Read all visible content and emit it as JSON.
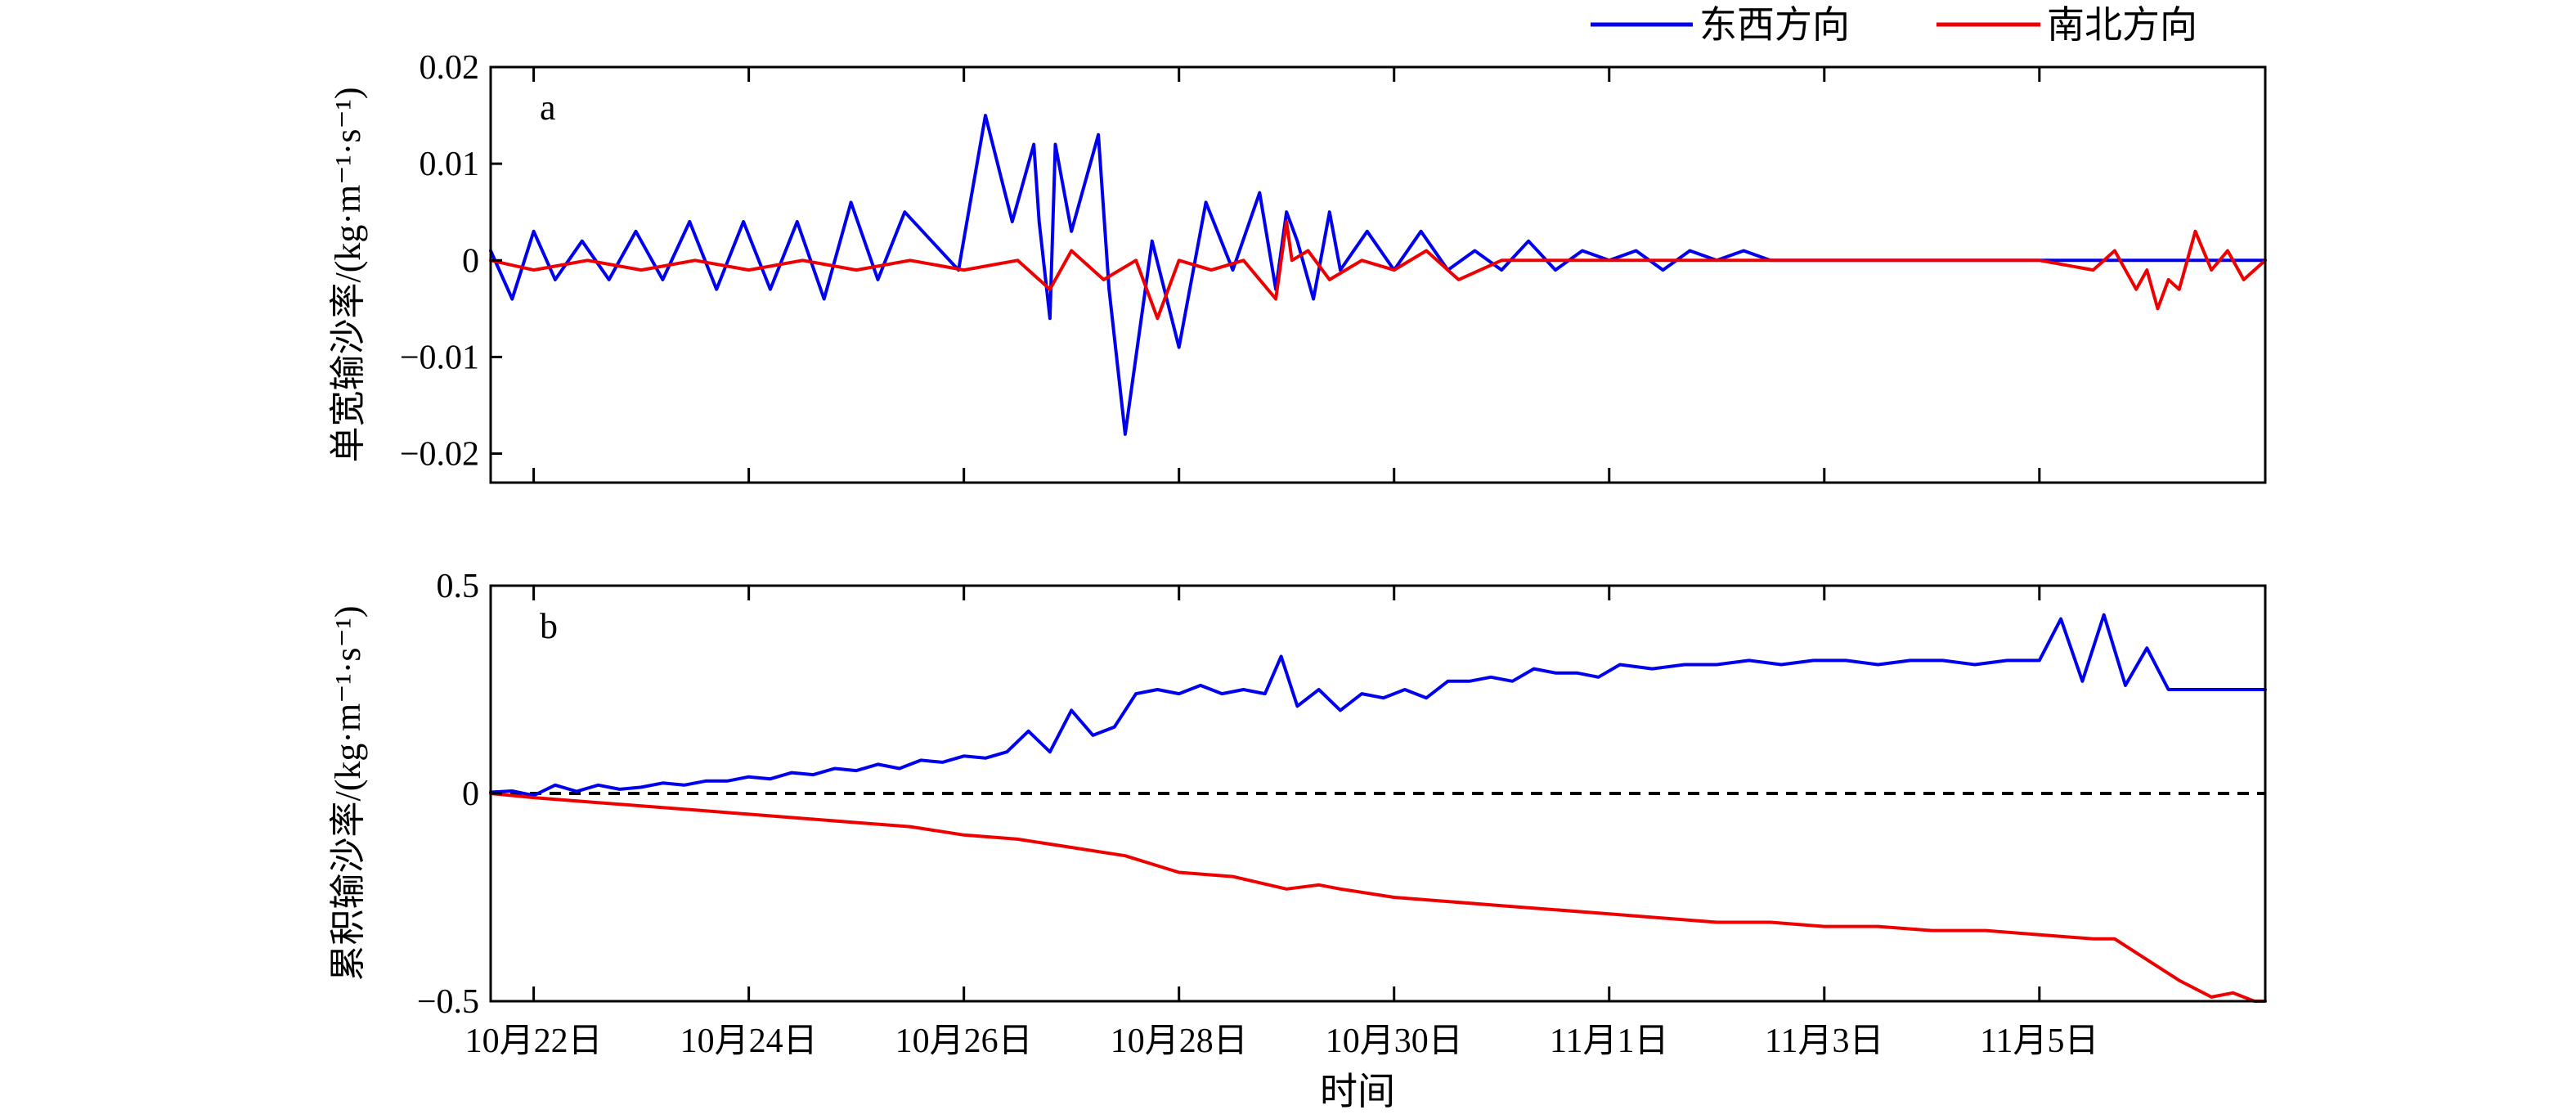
{
  "legend": [
    {
      "label": "东西方向",
      "color": "#0000ee"
    },
    {
      "label": "南北方向",
      "color": "#ee0000"
    }
  ],
  "xlabel": "时间",
  "x_ticks": [
    {
      "day": 0,
      "label": "10月22日"
    },
    {
      "day": 2,
      "label": "10月24日"
    },
    {
      "day": 4,
      "label": "10月26日"
    },
    {
      "day": 6,
      "label": "10月28日"
    },
    {
      "day": 8,
      "label": "10月30日"
    },
    {
      "day": 10,
      "label": "11月1日"
    },
    {
      "day": 12,
      "label": "11月3日"
    },
    {
      "day": 14,
      "label": "11月5日"
    }
  ],
  "chart_data": [
    {
      "type": "line",
      "panel_label": "a",
      "ylabel": "单宽输沙率/(kg·m⁻¹·s⁻¹)",
      "xlim": [
        "10月21日 15:00",
        "11月6日 23:00"
      ],
      "ylim": [
        -0.023,
        0.02
      ],
      "y_ticks": [
        {
          "value": 0.02,
          "label": "0.02"
        },
        {
          "value": 0.01,
          "label": "0.01"
        },
        {
          "value": 0,
          "label": "0"
        },
        {
          "value": -0.01,
          "label": "−0.01"
        },
        {
          "value": -0.02,
          "label": "−0.02"
        }
      ],
      "series": [
        {
          "name": "东西方向",
          "color": "#0000ee",
          "x_days": [
            -0.4,
            -0.2,
            0,
            0.2,
            0.45,
            0.7,
            0.95,
            1.2,
            1.45,
            1.7,
            1.95,
            2.2,
            2.45,
            2.7,
            2.95,
            3.2,
            3.45,
            3.7,
            3.95,
            4.2,
            4.45,
            4.65,
            4.7,
            4.75,
            4.8,
            4.85,
            5.0,
            5.25,
            5.35,
            5.5,
            5.75,
            6.0,
            6.25,
            6.5,
            6.75,
            6.9,
            7.0,
            7.1,
            7.25,
            7.4,
            7.5,
            7.75,
            8.0,
            8.25,
            8.5,
            8.75,
            9.0,
            9.25,
            9.5,
            9.75,
            10.0,
            10.25,
            10.5,
            10.75,
            11.0,
            11.25,
            11.5,
            11.75,
            12.0,
            12.25,
            12.5,
            12.75,
            13.0,
            13.25,
            13.5,
            13.75,
            14.0,
            14.1,
            14.25,
            14.4,
            14.5,
            14.6,
            14.75,
            14.85,
            15.0,
            15.2,
            15.35,
            15.5,
            15.6,
            15.65,
            15.75,
            15.9,
            16.0,
            16.1
          ],
          "y": [
            0.001,
            -0.004,
            0.003,
            -0.002,
            0.002,
            -0.002,
            0.003,
            -0.002,
            0.004,
            -0.003,
            0.004,
            -0.003,
            0.004,
            -0.004,
            0.006,
            -0.002,
            0.005,
            0.002,
            -0.001,
            0.015,
            0.004,
            0.012,
            0.004,
            -0.001,
            -0.006,
            0.012,
            0.003,
            0.013,
            -0.003,
            -0.018,
            0.002,
            -0.009,
            0.006,
            -0.001,
            0.007,
            -0.003,
            0.005,
            0.002,
            -0.004,
            0.005,
            -0.001,
            0.003,
            -0.001,
            0.003,
            -0.001,
            0.001,
            -0.001,
            0.002,
            -0.001,
            0.001,
            0.0,
            0.001,
            -0.001,
            0.001,
            0.0,
            0.001,
            0.0,
            0.0,
            0.0,
            0.0,
            0.0,
            0.0,
            0.0,
            0.0,
            0.0,
            0.0,
            0.0,
            0.0,
            0.0,
            0.0,
            0.0,
            0.0,
            0.0,
            0.0,
            0.0,
            0.0,
            0.0,
            0.0,
            0.0,
            0.0,
            0.0,
            0.0,
            0.0,
            0.0
          ]
        },
        {
          "name": "南北方向",
          "color": "#ee0000",
          "x_days": [
            -0.4,
            0,
            0.5,
            1,
            1.5,
            2,
            2.5,
            3,
            3.5,
            4,
            4.5,
            4.8,
            5,
            5.3,
            5.6,
            5.8,
            6,
            6.3,
            6.6,
            6.9,
            7.0,
            7.05,
            7.2,
            7.4,
            7.7,
            8,
            8.3,
            8.6,
            9,
            9.5,
            10,
            10.5,
            11,
            11.5,
            12,
            12.5,
            13,
            13.5,
            14,
            14.5,
            14.7,
            14.9,
            15.0,
            15.1,
            15.2,
            15.3,
            15.45,
            15.6,
            15.75,
            15.9,
            16.1
          ],
          "y": [
            0.0,
            -0.001,
            0.0,
            -0.001,
            0.0,
            -0.001,
            0.0,
            -0.001,
            0.0,
            -0.001,
            0.0,
            -0.003,
            0.001,
            -0.002,
            0.0,
            -0.006,
            0.0,
            -0.001,
            0.0,
            -0.004,
            0.004,
            0.0,
            0.001,
            -0.002,
            0.0,
            -0.001,
            0.001,
            -0.002,
            0.0,
            0.0,
            0.0,
            0.0,
            0.0,
            0.0,
            0.0,
            0.0,
            0.0,
            0.0,
            0.0,
            -0.001,
            0.001,
            -0.003,
            -0.001,
            -0.005,
            -0.002,
            -0.003,
            0.003,
            -0.001,
            0.001,
            -0.002,
            0.0
          ]
        }
      ]
    },
    {
      "type": "line",
      "panel_label": "b",
      "ylabel": "累积输沙率/(kg·m⁻¹·s⁻¹)",
      "xlim": [
        "10月21日 15:00",
        "11月6日 23:00"
      ],
      "ylim": [
        -0.5,
        0.5
      ],
      "y_ticks": [
        {
          "value": 0.5,
          "label": "0.5"
        },
        {
          "value": 0,
          "label": "0"
        },
        {
          "value": -0.5,
          "label": "−0.5"
        }
      ],
      "zero_line": true,
      "series": [
        {
          "name": "东西方向",
          "color": "#0000ee",
          "x_days": [
            -0.4,
            -0.2,
            0,
            0.2,
            0.4,
            0.6,
            0.8,
            1.0,
            1.2,
            1.4,
            1.6,
            1.8,
            2.0,
            2.2,
            2.4,
            2.6,
            2.8,
            3.0,
            3.2,
            3.4,
            3.6,
            3.8,
            4.0,
            4.2,
            4.4,
            4.6,
            4.8,
            5.0,
            5.2,
            5.4,
            5.6,
            5.8,
            6.0,
            6.2,
            6.4,
            6.6,
            6.8,
            6.95,
            7.1,
            7.3,
            7.5,
            7.7,
            7.9,
            8.1,
            8.3,
            8.5,
            8.7,
            8.9,
            9.1,
            9.3,
            9.5,
            9.7,
            9.9,
            10.1,
            10.4,
            10.7,
            11.0,
            11.3,
            11.6,
            11.9,
            12.2,
            12.5,
            12.8,
            13.1,
            13.4,
            13.7,
            14.0,
            14.2,
            14.4,
            14.6,
            14.8,
            15.0,
            15.2,
            15.4,
            15.6,
            15.8,
            16.0,
            16.1
          ],
          "y": [
            0.003,
            0.006,
            -0.005,
            0.02,
            0.005,
            0.02,
            0.01,
            0.015,
            0.025,
            0.02,
            0.03,
            0.03,
            0.04,
            0.035,
            0.05,
            0.045,
            0.06,
            0.055,
            0.07,
            0.06,
            0.08,
            0.075,
            0.09,
            0.085,
            0.1,
            0.15,
            0.1,
            0.2,
            0.14,
            0.16,
            0.24,
            0.25,
            0.24,
            0.26,
            0.24,
            0.25,
            0.24,
            0.33,
            0.21,
            0.25,
            0.2,
            0.24,
            0.23,
            0.25,
            0.23,
            0.27,
            0.27,
            0.28,
            0.27,
            0.3,
            0.29,
            0.29,
            0.28,
            0.31,
            0.3,
            0.31,
            0.31,
            0.32,
            0.31,
            0.32,
            0.32,
            0.31,
            0.32,
            0.32,
            0.31,
            0.32,
            0.32,
            0.42,
            0.27,
            0.43,
            0.26,
            0.35,
            0.25,
            0.25,
            0.25,
            0.25,
            0.25,
            0.25
          ]
        },
        {
          "name": "南北方向",
          "color": "#ee0000",
          "x_days": [
            -0.4,
            0,
            0.5,
            1,
            1.5,
            2,
            2.5,
            3,
            3.5,
            4,
            4.5,
            5,
            5.5,
            6,
            6.5,
            7,
            7.3,
            7.5,
            8,
            8.5,
            9,
            9.5,
            10,
            10.5,
            11,
            11.5,
            12,
            12.5,
            13,
            13.5,
            14,
            14.5,
            14.7,
            15.0,
            15.3,
            15.6,
            15.8,
            16.0,
            16.1
          ],
          "y": [
            0.0,
            -0.01,
            -0.02,
            -0.03,
            -0.04,
            -0.05,
            -0.06,
            -0.07,
            -0.08,
            -0.1,
            -0.11,
            -0.13,
            -0.15,
            -0.19,
            -0.2,
            -0.23,
            -0.22,
            -0.23,
            -0.25,
            -0.26,
            -0.27,
            -0.28,
            -0.29,
            -0.3,
            -0.31,
            -0.31,
            -0.32,
            -0.32,
            -0.33,
            -0.33,
            -0.34,
            -0.35,
            -0.35,
            -0.4,
            -0.45,
            -0.49,
            -0.48,
            -0.5,
            -0.5
          ]
        }
      ]
    }
  ]
}
